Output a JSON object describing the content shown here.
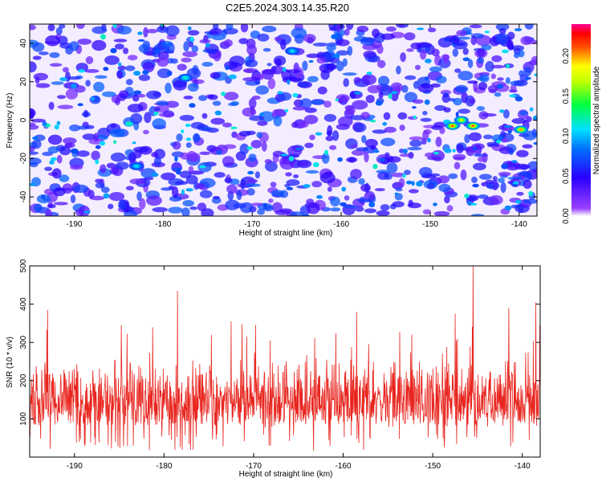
{
  "title": "C2E5.2024.303.14.35.R20",
  "colors": {
    "snr_line": "#e8261f",
    "heatmap_background": "#ffffff",
    "colormap": [
      "#ffffff",
      "#7a00ff",
      "#0000ff",
      "#00c8ff",
      "#00ff60",
      "#b0ff00",
      "#ffff00",
      "#ff6000",
      "#ff0000",
      "#ff0080"
    ]
  },
  "chart_data": [
    {
      "type": "heatmap",
      "title": "C2E5.2024.303.14.35.R20",
      "xlabel": "Height of straight line (km)",
      "ylabel": "Frequency (Hz)",
      "xlim": [
        -195,
        -138
      ],
      "ylim": [
        -50,
        50
      ],
      "xticks": [
        -190,
        -180,
        -170,
        -160,
        -150,
        -140
      ],
      "yticks": [
        -40,
        -20,
        0,
        20,
        40
      ],
      "colorbar": {
        "label": "Normalized spectral amplitude",
        "range": [
          0,
          0.24
        ],
        "ticks": [
          "0.00",
          "0.05",
          "0.10",
          "0.15",
          "0.20"
        ]
      },
      "description_of_values": "Noise-like field of normalized spectral amplitude mostly 0.02-0.08 (purple/blue) with scattered cyan/green peaks (~0.10-0.13) and strongest features near 0 Hz at heights around -148 to -145 km and -140 km (~0.18-0.22).",
      "peaks": [
        {
          "x": -147.5,
          "y": -3,
          "value": 0.21
        },
        {
          "x": -146.5,
          "y": 0,
          "value": 0.18
        },
        {
          "x": -145.2,
          "y": -3,
          "value": 0.21
        },
        {
          "x": -139.8,
          "y": -5,
          "value": 0.2
        },
        {
          "x": -177.5,
          "y": 22,
          "value": 0.12
        },
        {
          "x": -165.5,
          "y": 36,
          "value": 0.11
        },
        {
          "x": -183.0,
          "y": -24,
          "value": 0.11
        }
      ]
    },
    {
      "type": "line",
      "xlabel": "Height of straight line (km)",
      "ylabel": "SNR (10 * v/v)",
      "xlim": [
        -195,
        -138
      ],
      "ylim": [
        0,
        500
      ],
      "xticks": [
        -190,
        -180,
        -170,
        -160,
        -150,
        -140
      ],
      "yticks": [
        100,
        200,
        300,
        400,
        500
      ],
      "description_of_values": "Dense noisy SNR trace, baseline mostly 80-250 with spikes to ~300-440; highest spike ~500 near -145.5 km, another ~400 near -138.5 km.",
      "spikes": [
        {
          "x": -193,
          "y": 385
        },
        {
          "x": -178.5,
          "y": 435
        },
        {
          "x": -172.5,
          "y": 355
        },
        {
          "x": -158.5,
          "y": 380
        },
        {
          "x": -147.5,
          "y": 375
        },
        {
          "x": -145.5,
          "y": 500
        },
        {
          "x": -141.5,
          "y": 390
        },
        {
          "x": -138.5,
          "y": 405
        }
      ],
      "baseline_range": [
        60,
        260
      ]
    }
  ]
}
